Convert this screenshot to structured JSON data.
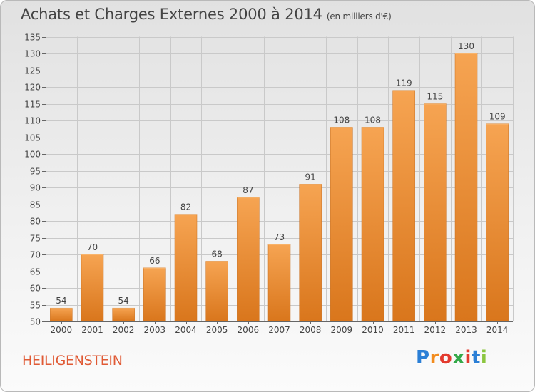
{
  "header": {
    "title": "Achats et Charges Externes 2000 à 2014",
    "unit": "(en milliers d'€)"
  },
  "footer": {
    "town": "HEILIGENSTEIN",
    "brand_letters": [
      "P",
      "r",
      "o",
      "x",
      "i",
      "t",
      "i"
    ],
    "brand_colors": [
      "#2b7fd6",
      "#f28c1e",
      "#e33b2f",
      "#35a94a",
      "#e33b2f",
      "#2b7fd6",
      "#8cc63f"
    ]
  },
  "colors": {
    "bar_top": "#f6a452",
    "bar_bottom": "#d9761c",
    "grid": "#c9c9c9",
    "axis_text": "#444444"
  },
  "chart_data": {
    "type": "bar",
    "title": "Achats et Charges Externes 2000 à 2014",
    "subtitle": "(en milliers d'€)",
    "categories": [
      "2000",
      "2001",
      "2002",
      "2003",
      "2004",
      "2005",
      "2006",
      "2007",
      "2008",
      "2009",
      "2010",
      "2011",
      "2012",
      "2013",
      "2014"
    ],
    "values": [
      54,
      70,
      54,
      66,
      82,
      68,
      87,
      73,
      91,
      108,
      108,
      119,
      115,
      130,
      109
    ],
    "ylim": [
      50,
      135
    ],
    "ytick_step": 5,
    "grid": true,
    "data_labels": true
  }
}
